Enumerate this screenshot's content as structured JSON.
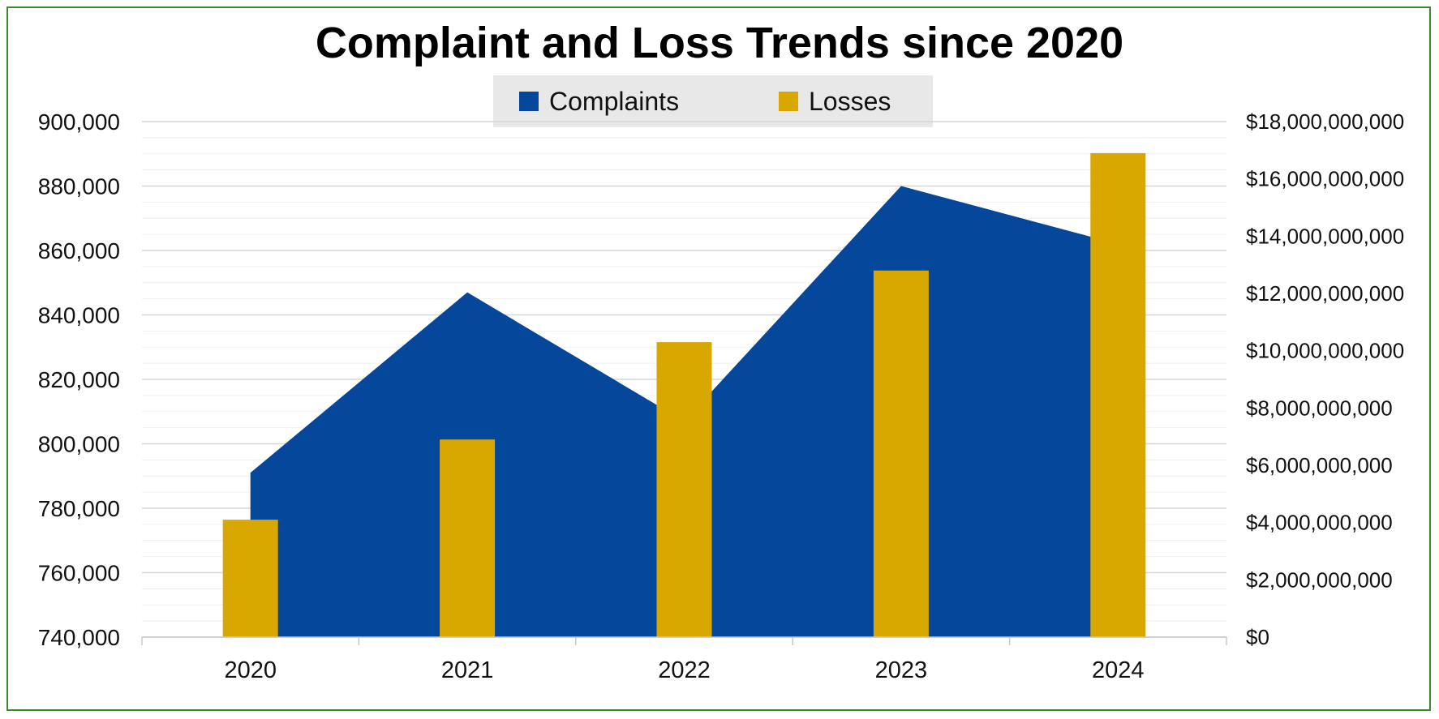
{
  "chart_data": {
    "type": "bar",
    "title": "Complaint and Loss Trends since 2020",
    "categories": [
      "2020",
      "2021",
      "2022",
      "2023",
      "2024"
    ],
    "series": [
      {
        "name": "Complaints",
        "type": "area",
        "axis": "left",
        "color": "#05479a",
        "values": [
          791000,
          847000,
          807000,
          880000,
          862000
        ]
      },
      {
        "name": "Losses",
        "type": "bar",
        "axis": "right",
        "color": "#d9a800",
        "values": [
          4100000000,
          6900000000,
          10300000000,
          12800000000,
          16900000000
        ]
      }
    ],
    "ylim_left": [
      740000,
      900000
    ],
    "ylim_right": [
      0,
      18000000000
    ],
    "yticks_left": [
      "740,000",
      "760,000",
      "780,000",
      "800,000",
      "820,000",
      "840,000",
      "860,000",
      "880,000",
      "900,000"
    ],
    "yticks_right": [
      "$0",
      "$2,000,000,000",
      "$4,000,000,000",
      "$6,000,000,000",
      "$8,000,000,000",
      "$10,000,000,000",
      "$12,000,000,000",
      "$14,000,000,000",
      "$16,000,000,000",
      "$18,000,000,000"
    ],
    "legend": {
      "position": "top-center",
      "entries": [
        "Complaints",
        "Losses"
      ]
    },
    "grid": true
  }
}
